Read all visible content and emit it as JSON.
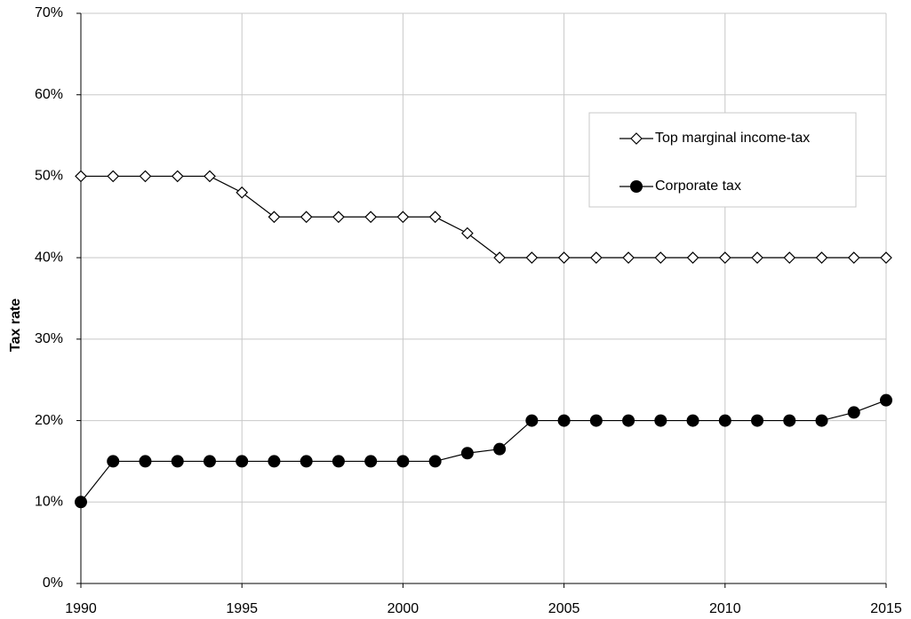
{
  "chart_data": {
    "type": "line",
    "y_label": "Tax rate",
    "x": [
      1990,
      1991,
      1992,
      1993,
      1994,
      1995,
      1996,
      1997,
      1998,
      1999,
      2000,
      2001,
      2002,
      2003,
      2004,
      2005,
      2006,
      2007,
      2008,
      2009,
      2010,
      2011,
      2012,
      2013,
      2014,
      2015
    ],
    "series": [
      {
        "name": "Top marginal income-tax",
        "color": "#000000",
        "marker": "diamond",
        "values": [
          50,
          50,
          50,
          50,
          50,
          48,
          45,
          45,
          45,
          45,
          45,
          45,
          43,
          40,
          40,
          40,
          40,
          40,
          40,
          40,
          40,
          40,
          40,
          40,
          40,
          40
        ]
      },
      {
        "name": "Corporate tax",
        "color": "#000000",
        "marker": "circle",
        "values": [
          10,
          15,
          15,
          15,
          15,
          15,
          15,
          15,
          15,
          15,
          15,
          15,
          16,
          16.5,
          20,
          20,
          20,
          20,
          20,
          20,
          20,
          20,
          20,
          20,
          21,
          22.5
        ]
      }
    ],
    "xlim": [
      1990,
      2015
    ],
    "xticks": [
      1990,
      1995,
      2000,
      2005,
      2010,
      2015
    ],
    "ylim": [
      0,
      70
    ],
    "yticks": [
      {
        "value": 0,
        "label": "0%"
      },
      {
        "value": 10,
        "label": "10%"
      },
      {
        "value": 20,
        "label": "20%"
      },
      {
        "value": 30,
        "label": "30%"
      },
      {
        "value": 40,
        "label": "40%"
      },
      {
        "value": 50,
        "label": "50%"
      },
      {
        "value": 60,
        "label": "60%"
      },
      {
        "value": 70,
        "label": "70%"
      }
    ],
    "grid": true
  }
}
